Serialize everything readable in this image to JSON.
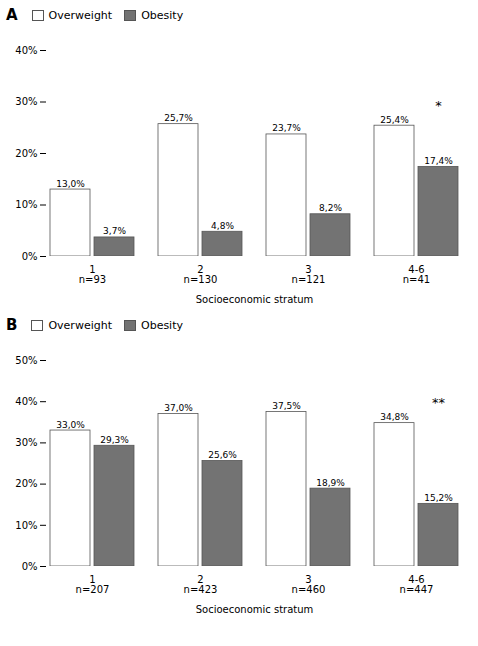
{
  "chart_data": [
    {
      "type": "bar",
      "title": "A",
      "categories": [
        "1\nn=93",
        "2\nn=130",
        "3\nn=121",
        "4-6\nn=41"
      ],
      "series": [
        {
          "name": "Overweight",
          "color": "#ffffff",
          "values": [
            13.0,
            25.7,
            23.7,
            25.4
          ],
          "value_labels": [
            "13,0%",
            "25,7%",
            "23,7%",
            "25,4%"
          ]
        },
        {
          "name": "Obesity",
          "color": "#737373",
          "values": [
            3.7,
            4.8,
            8.2,
            17.4
          ],
          "value_labels": [
            "3,7%",
            "4,8%",
            "8,2%",
            "17,4%"
          ]
        }
      ],
      "x_label": "Socioeconomic stratum",
      "ylim": [
        0,
        40
      ],
      "yticks": [
        {
          "value": 0,
          "label": "0%"
        },
        {
          "value": 10,
          "label": "10%"
        },
        {
          "value": 20,
          "label": "20%"
        },
        {
          "value": 30,
          "label": "30%"
        },
        {
          "value": 40,
          "label": "40%"
        }
      ],
      "annotations": [
        {
          "text": "*",
          "category": "4-6\nn=41"
        }
      ],
      "data_labels": true,
      "legend": "upper left",
      "grid": false
    },
    {
      "type": "bar",
      "title": "B",
      "categories": [
        "1\nn=207",
        "2\nn=423",
        "3\nn=460",
        "4-6\nn=447"
      ],
      "series": [
        {
          "name": "Overweight",
          "color": "#ffffff",
          "values": [
            33.0,
            37.0,
            37.5,
            34.8
          ],
          "value_labels": [
            "33,0%",
            "37,0%",
            "37,5%",
            "34,8%"
          ]
        },
        {
          "name": "Obesity",
          "color": "#737373",
          "values": [
            29.3,
            25.6,
            18.9,
            15.2
          ],
          "value_labels": [
            "29,3%",
            "25,6%",
            "18,9%",
            "15,2%"
          ]
        }
      ],
      "x_label": "Socioeconomic stratum",
      "ylim": [
        0,
        50
      ],
      "yticks": [
        {
          "value": 0,
          "label": "0%"
        },
        {
          "value": 10,
          "label": "10%"
        },
        {
          "value": 20,
          "label": "20%"
        },
        {
          "value": 30,
          "label": "30%"
        },
        {
          "value": 40,
          "label": "40%"
        },
        {
          "value": 50,
          "label": "50%"
        }
      ],
      "annotations": [
        {
          "text": "**",
          "category": "4-6\nn=447"
        }
      ],
      "data_labels": true,
      "legend": "upper left",
      "grid": false
    }
  ]
}
